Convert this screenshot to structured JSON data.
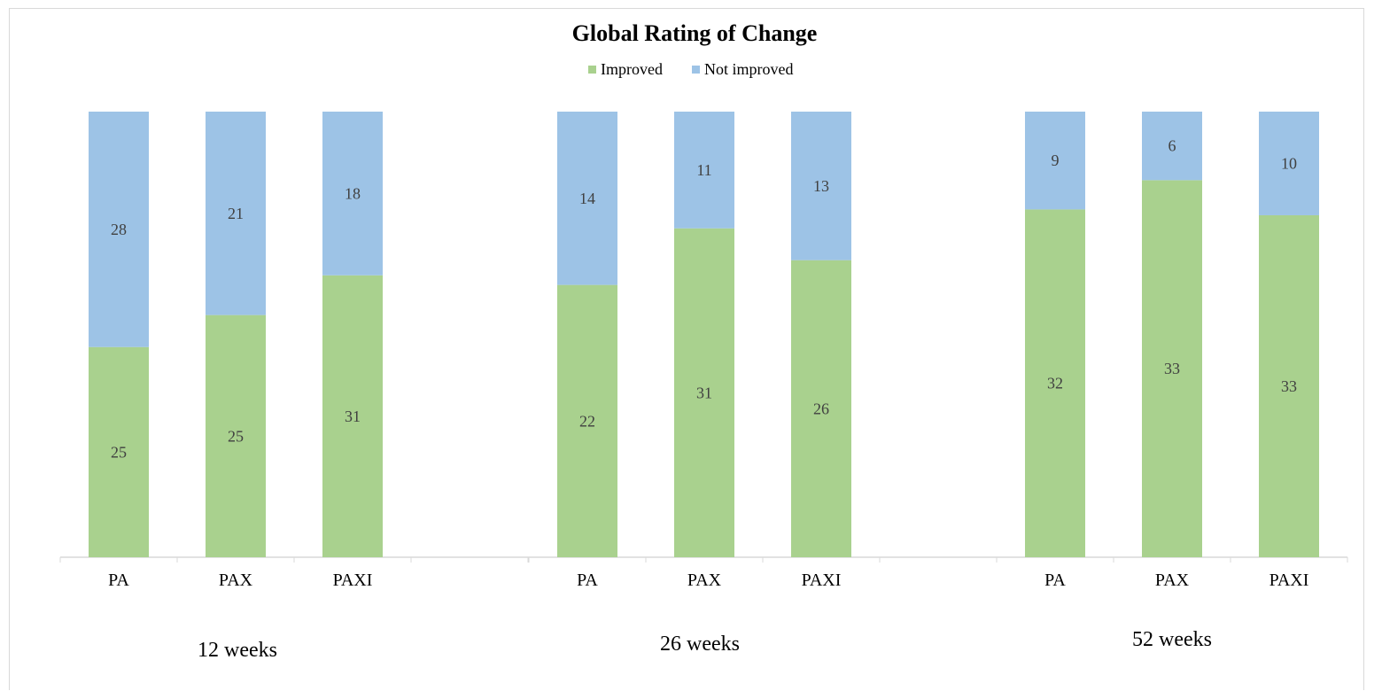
{
  "chart_data": {
    "type": "bar",
    "stacked": true,
    "percent_stacked": true,
    "title": "Global Rating of Change",
    "legend_position": "top",
    "grid": false,
    "groups": [
      {
        "label": "12 weeks",
        "categories": [
          "PA",
          "PAX",
          "PAXI"
        ],
        "improved": [
          25,
          25,
          31
        ],
        "not_improved": [
          28,
          21,
          18
        ]
      },
      {
        "label": "26 weeks",
        "categories": [
          "PA",
          "PAX",
          "PAXI"
        ],
        "improved": [
          22,
          31,
          26
        ],
        "not_improved": [
          14,
          11,
          13
        ]
      },
      {
        "label": "52 weeks",
        "categories": [
          "PA",
          "PAX",
          "PAXI"
        ],
        "improved": [
          32,
          33,
          33
        ],
        "not_improved": [
          9,
          6,
          10
        ]
      }
    ],
    "series": [
      {
        "name": "Improved",
        "key": "improved",
        "color": "#a9d18e"
      },
      {
        "name": "Not improved",
        "key": "not_improved",
        "color": "#9dc3e6"
      }
    ]
  }
}
